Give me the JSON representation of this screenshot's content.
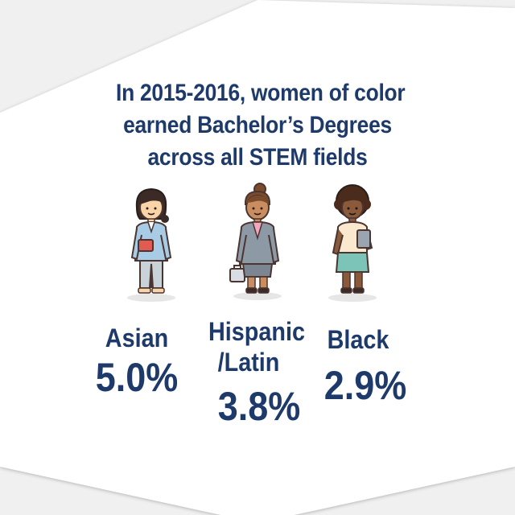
{
  "headline": {
    "line1": "In 2015-2016, women of color",
    "line2": "earned Bachelor’s Degrees",
    "line3": "across all STEM fields"
  },
  "colors": {
    "text": "#1d3a6b",
    "hexagon": "#ffffff",
    "background": "#f0f0f0"
  },
  "groups": [
    {
      "id": "asian",
      "label_line1": "Asian",
      "value": "5.0%",
      "icon": "woman-holding-book-icon"
    },
    {
      "id": "hispanic-latin",
      "label_line1": "Hispanic",
      "label_line2": "/Latin",
      "value": "3.8%",
      "icon": "woman-with-briefcase-icon"
    },
    {
      "id": "black",
      "label_line1": "Black",
      "value": "2.9%",
      "icon": "woman-holding-tablet-icon"
    }
  ]
}
